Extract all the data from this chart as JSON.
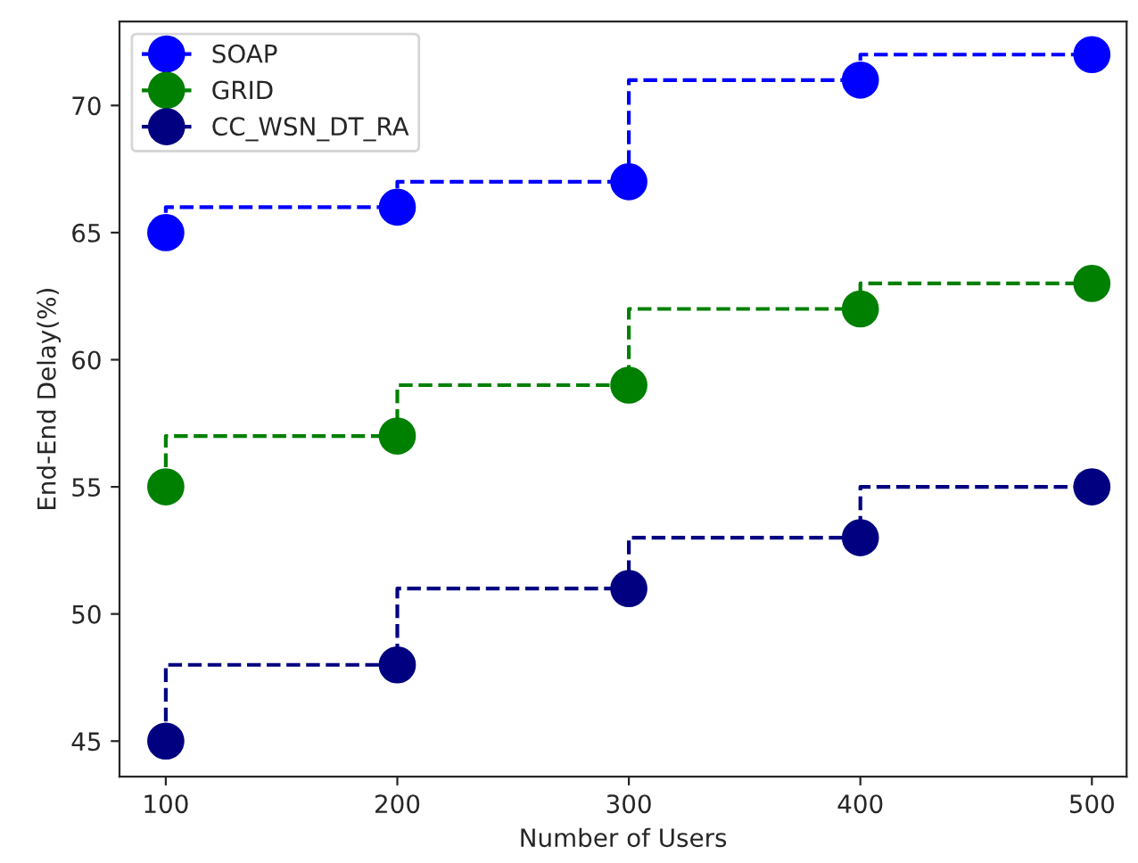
{
  "chart_data": {
    "type": "step",
    "xlabel": "Number of Users",
    "ylabel": "End-End Delay(%)",
    "x": [
      100,
      200,
      300,
      400,
      500
    ],
    "series": [
      {
        "name": "SOAP",
        "color": "#0000ff",
        "values": [
          65,
          66,
          67,
          71,
          72
        ]
      },
      {
        "name": "GRID",
        "color": "#008000",
        "values": [
          55,
          57,
          59,
          62,
          63
        ]
      },
      {
        "name": "CC_WSN_DT_RA",
        "color": "#000080",
        "values": [
          45,
          48,
          51,
          53,
          55
        ]
      }
    ],
    "xlim": [
      80,
      515
    ],
    "xticks": [
      100,
      200,
      300,
      400,
      500
    ],
    "ylim": [
      43.6,
      73.3
    ],
    "yticks": [
      45,
      50,
      55,
      60,
      65,
      70
    ],
    "marker": "circle",
    "line_style": "dashed",
    "legend": "top left",
    "grid": false
  }
}
